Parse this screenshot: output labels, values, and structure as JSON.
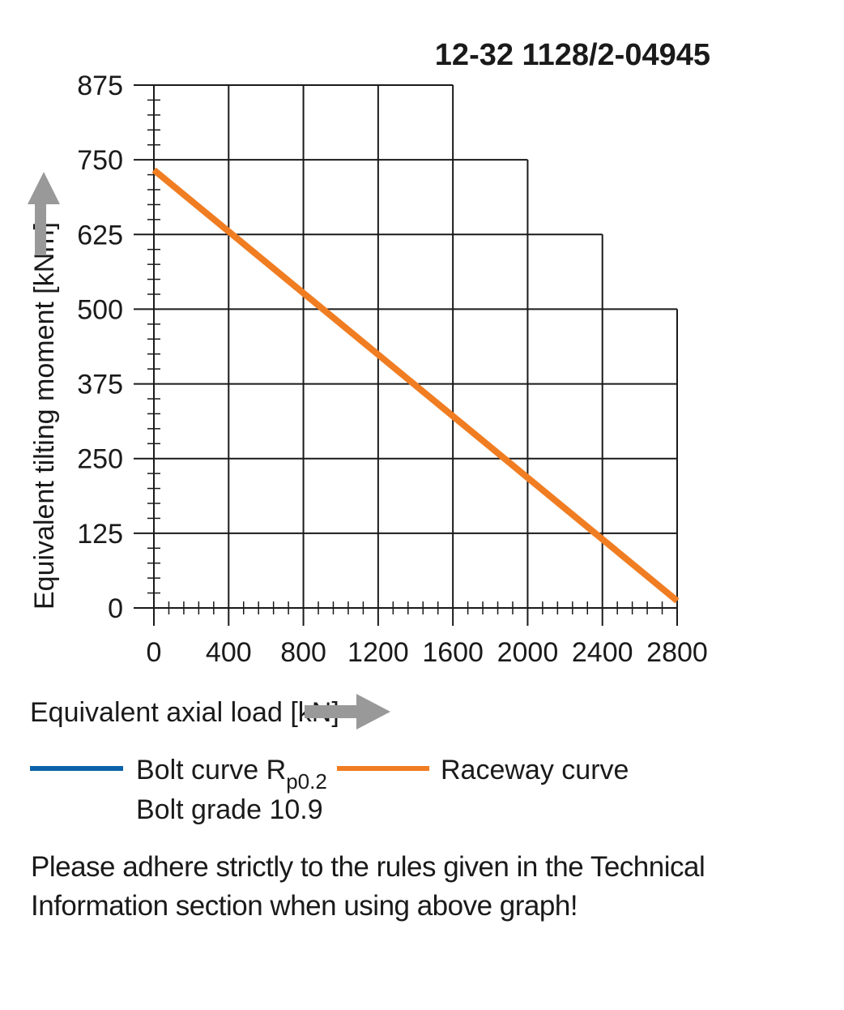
{
  "chart_data": {
    "type": "line",
    "title": "12-32 1128/2-04945",
    "xlabel": "Equivalent axial load [kN]",
    "ylabel": "Equivalent tilting moment [kNm]",
    "xlim": [
      0,
      2800
    ],
    "ylim": [
      0,
      875
    ],
    "x_ticks": [
      0,
      400,
      800,
      1200,
      1600,
      2000,
      2400,
      2800
    ],
    "y_ticks": [
      0,
      125,
      250,
      375,
      500,
      625,
      750,
      875
    ],
    "grid": true,
    "grid_envelope": [
      {
        "x_from": 400,
        "x_to": 1600,
        "y_top": 875
      },
      {
        "x_from": 1600,
        "x_to": 2000,
        "y_top": 750
      },
      {
        "x_from": 2000,
        "x_to": 2400,
        "y_top": 625
      },
      {
        "x_from": 2400,
        "x_to": 2800,
        "y_top": 500
      }
    ],
    "series": [
      {
        "name": "Raceway curve",
        "color": "#f07d22",
        "x": [
          0,
          2800
        ],
        "y": [
          733,
          12
        ]
      }
    ],
    "legend": {
      "placement": "bottom",
      "entries": [
        {
          "label": "Bolt curve  R",
          "subscript": "p0.2",
          "label_line2": "Bolt grade 10.9",
          "color": "#0b62a9"
        },
        {
          "label": "Raceway curve",
          "color": "#f07d22"
        }
      ]
    }
  },
  "note_line1": "Please adhere strictly to the rules given in the Technical",
  "note_line2": "Information section when using above graph!"
}
